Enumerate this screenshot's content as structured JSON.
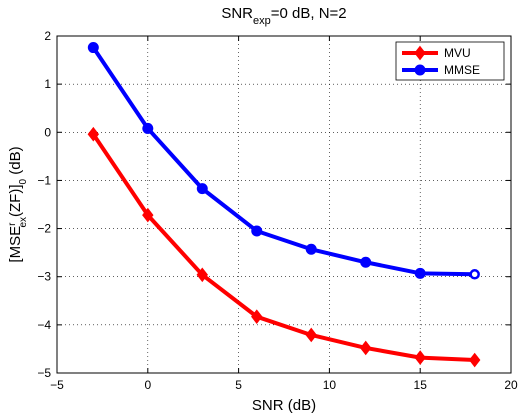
{
  "chart_data": {
    "type": "line",
    "title": {
      "main": "SNR",
      "sub": "exp",
      "rest": "=0 dB, N=2"
    },
    "xlabel": "SNR (dB)",
    "ylabel": {
      "pre": "[MSE",
      "sup": "r",
      "sub": "ex",
      "mid": "(ZF)]",
      "sub2": "0",
      "post": " (dB)"
    },
    "xlim": [
      -5,
      20
    ],
    "ylim": [
      -5,
      2
    ],
    "xticks": [
      -5,
      0,
      5,
      10,
      15,
      20
    ],
    "yticks": [
      -5,
      -4,
      -3,
      -2,
      -1,
      0,
      1,
      2
    ],
    "xtick_labels": [
      "−5",
      "0",
      "5",
      "10",
      "15",
      "20"
    ],
    "ytick_labels": [
      "−5",
      "−4",
      "−3",
      "−2",
      "−1",
      "0",
      "1",
      "2"
    ],
    "grid": true,
    "legend_position": "top-right",
    "x": [
      -3,
      0,
      3,
      6,
      9,
      12,
      15,
      18
    ],
    "series": [
      {
        "name": "MVU",
        "color": "#ff0000",
        "marker": "diamond",
        "values": [
          -0.04,
          -1.72,
          -2.96,
          -3.83,
          -4.21,
          -4.48,
          -4.68,
          -4.73
        ]
      },
      {
        "name": "MMSE",
        "color": "#0000ff",
        "marker": "circle",
        "values": [
          1.76,
          0.08,
          -1.17,
          -2.05,
          -2.43,
          -2.7,
          -2.93,
          -2.95
        ]
      }
    ]
  }
}
